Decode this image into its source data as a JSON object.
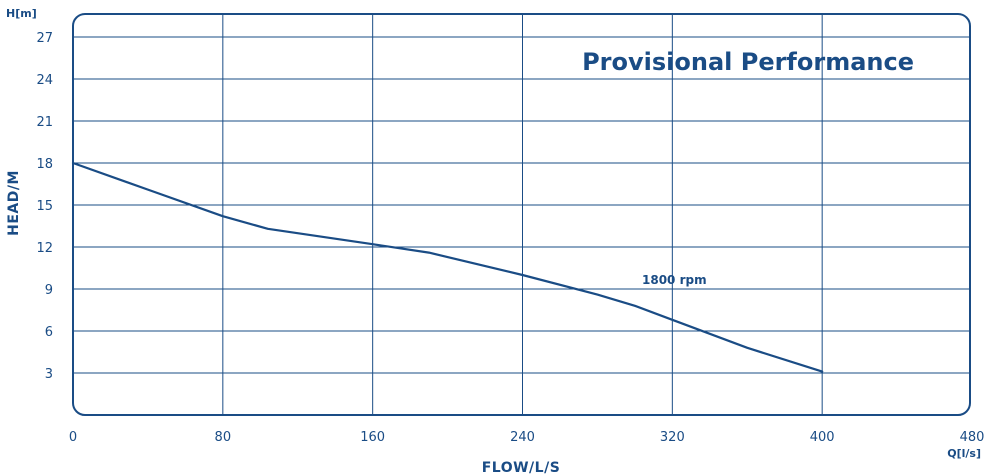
{
  "chart_data": {
    "type": "line",
    "title": "Provisional Performance",
    "xlabel": "FLOW/L/S",
    "ylabel": "HEAD/M",
    "x_unit": "Q[l/s]",
    "y_unit": "H[m]",
    "xlim": [
      0,
      480
    ],
    "ylim": [
      0,
      29
    ],
    "x_ticks": [
      0,
      80,
      160,
      240,
      320,
      400,
      480
    ],
    "y_ticks": [
      3,
      6,
      9,
      12,
      15,
      18,
      21,
      24,
      27
    ],
    "grid": true,
    "series": [
      {
        "name": "1800 rpm",
        "x": [
          0,
          40,
          80,
          104,
          160,
          190,
          240,
          280,
          300,
          320,
          360,
          400
        ],
        "y": [
          18,
          16.1,
          14.2,
          13.3,
          12.2,
          11.6,
          10.0,
          8.6,
          7.8,
          6.8,
          4.8,
          3.1
        ]
      }
    ]
  },
  "colors": {
    "ink": "#1a4c85",
    "grid": "#1a4c85",
    "title": "#1a4c85",
    "curve": "#1a4c85"
  }
}
